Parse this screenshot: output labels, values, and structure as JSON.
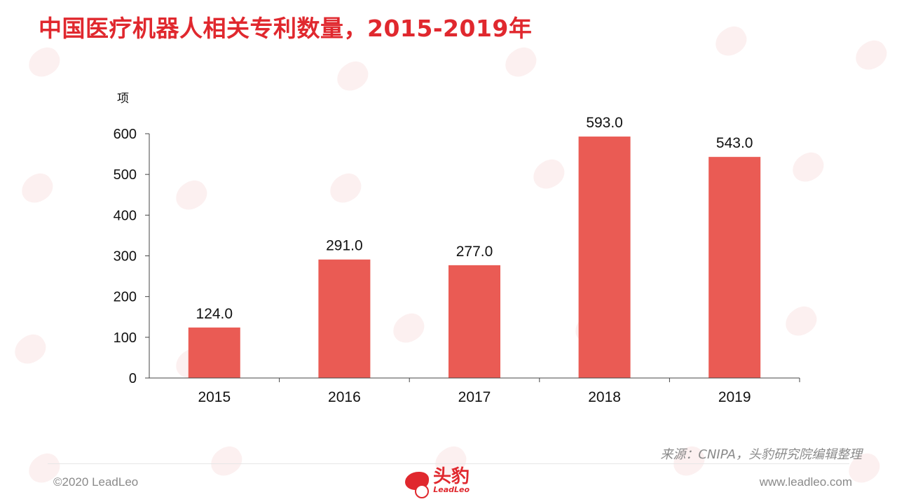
{
  "title": "中国医疗机器人相关专利数量，2015-2019年",
  "y_unit": "项",
  "source": "来源：CNIPA，头豹研究院编辑整理",
  "footer": {
    "copyright": "©2020 LeadLeo",
    "website": "www.leadleo.com",
    "logo_cn": "头豹",
    "logo_en": "LeadLeo"
  },
  "colors": {
    "bar": "#ea5b54",
    "title": "#e0282e",
    "axis": "#444444"
  },
  "chart_data": {
    "type": "bar",
    "title": "中国医疗机器人相关专利数量，2015-2019年",
    "xlabel": "",
    "ylabel": "项",
    "categories": [
      "2015",
      "2016",
      "2017",
      "2018",
      "2019"
    ],
    "values": [
      124,
      291,
      277,
      593,
      543
    ],
    "data_labels": [
      "124.0",
      "291.0",
      "277.0",
      "593.0",
      "543.0"
    ],
    "ylim": [
      0,
      600
    ],
    "yticks": [
      "0",
      "100",
      "200",
      "300",
      "400",
      "500",
      "600"
    ],
    "grid": false,
    "legend": "none"
  }
}
